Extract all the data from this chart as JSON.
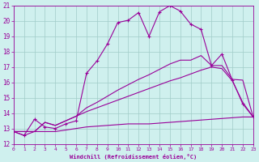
{
  "xlabel": "Windchill (Refroidissement éolien,°C)",
  "bg_color": "#cff0ee",
  "grid_color": "#a0ccc8",
  "line_color": "#990099",
  "xmin": 0,
  "xmax": 23,
  "ymin": 12,
  "ymax": 21,
  "line1_x": [
    0,
    1,
    2,
    3,
    4,
    5,
    6,
    7,
    8,
    9,
    10,
    11,
    12,
    13,
    14,
    15,
    16,
    17,
    18,
    19,
    20,
    21,
    22,
    23
  ],
  "line1_y": [
    12.8,
    12.55,
    13.6,
    13.1,
    13.0,
    13.3,
    13.5,
    16.6,
    17.4,
    18.5,
    19.9,
    20.05,
    20.55,
    19.0,
    20.6,
    21.0,
    20.65,
    19.8,
    19.45,
    17.1,
    17.85,
    16.15,
    14.6,
    13.75
  ],
  "line2_x": [
    0,
    1,
    2,
    3,
    4,
    5,
    6,
    7,
    8,
    9,
    10,
    11,
    12,
    13,
    14,
    15,
    16,
    17,
    18,
    19,
    20,
    21,
    22,
    23
  ],
  "line2_y": [
    12.8,
    12.8,
    12.8,
    13.4,
    13.2,
    13.5,
    13.8,
    14.35,
    14.7,
    15.1,
    15.5,
    15.85,
    16.2,
    16.5,
    16.85,
    17.2,
    17.45,
    17.45,
    17.75,
    17.1,
    17.1,
    16.2,
    16.15,
    13.75
  ],
  "line3_x": [
    0,
    1,
    2,
    3,
    4,
    5,
    6,
    7,
    8,
    9,
    10,
    11,
    12,
    13,
    14,
    15,
    16,
    17,
    18,
    19,
    20,
    21,
    22,
    23
  ],
  "line3_y": [
    12.8,
    12.8,
    12.8,
    13.4,
    13.2,
    13.5,
    13.8,
    14.1,
    14.35,
    14.6,
    14.85,
    15.1,
    15.35,
    15.6,
    15.85,
    16.1,
    16.3,
    16.55,
    16.8,
    17.0,
    16.9,
    16.1,
    14.7,
    13.75
  ],
  "line4_x": [
    0,
    1,
    2,
    3,
    4,
    5,
    6,
    7,
    8,
    9,
    10,
    11,
    12,
    13,
    14,
    15,
    16,
    17,
    18,
    19,
    20,
    21,
    22,
    23
  ],
  "line4_y": [
    12.8,
    12.55,
    12.8,
    12.8,
    12.8,
    12.9,
    13.0,
    13.1,
    13.15,
    13.2,
    13.25,
    13.3,
    13.3,
    13.3,
    13.35,
    13.4,
    13.45,
    13.5,
    13.55,
    13.6,
    13.65,
    13.7,
    13.75,
    13.75
  ]
}
